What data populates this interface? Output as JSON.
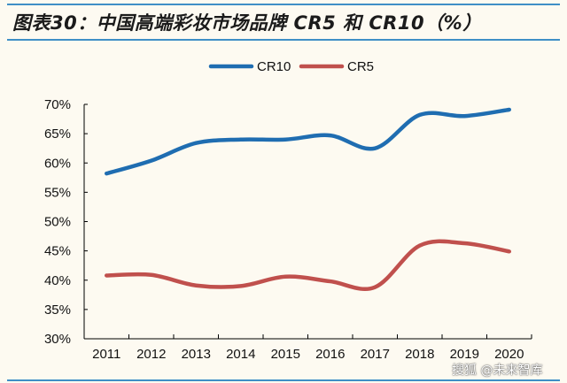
{
  "title": "图表30：中国高端彩妆市场品牌 CR5 和 CR10（%）",
  "watermark": "搜狐 @未来智库",
  "chart_data": {
    "type": "line",
    "title": "图表30：中国高端彩妆市场品牌 CR5 和 CR10（%）",
    "xlabel": "",
    "ylabel": "",
    "categories": [
      "2011",
      "2012",
      "2013",
      "2014",
      "2015",
      "2016",
      "2017",
      "2018",
      "2019",
      "2020"
    ],
    "ylim": [
      30,
      70
    ],
    "yticks": [
      "30%",
      "35%",
      "40%",
      "45%",
      "50%",
      "55%",
      "60%",
      "65%",
      "70%"
    ],
    "grid": false,
    "legend_position": "top",
    "smooth": true,
    "series": [
      {
        "name": "CR10",
        "color": "#1f6db1",
        "values": [
          58.2,
          60.4,
          63.4,
          64.0,
          64.0,
          64.7,
          62.5,
          68.2,
          68.0,
          69.1
        ]
      },
      {
        "name": "CR5",
        "color": "#c0504d",
        "values": [
          40.8,
          40.9,
          39.1,
          39.0,
          40.6,
          39.8,
          38.8,
          45.9,
          46.3,
          44.9
        ]
      }
    ]
  }
}
